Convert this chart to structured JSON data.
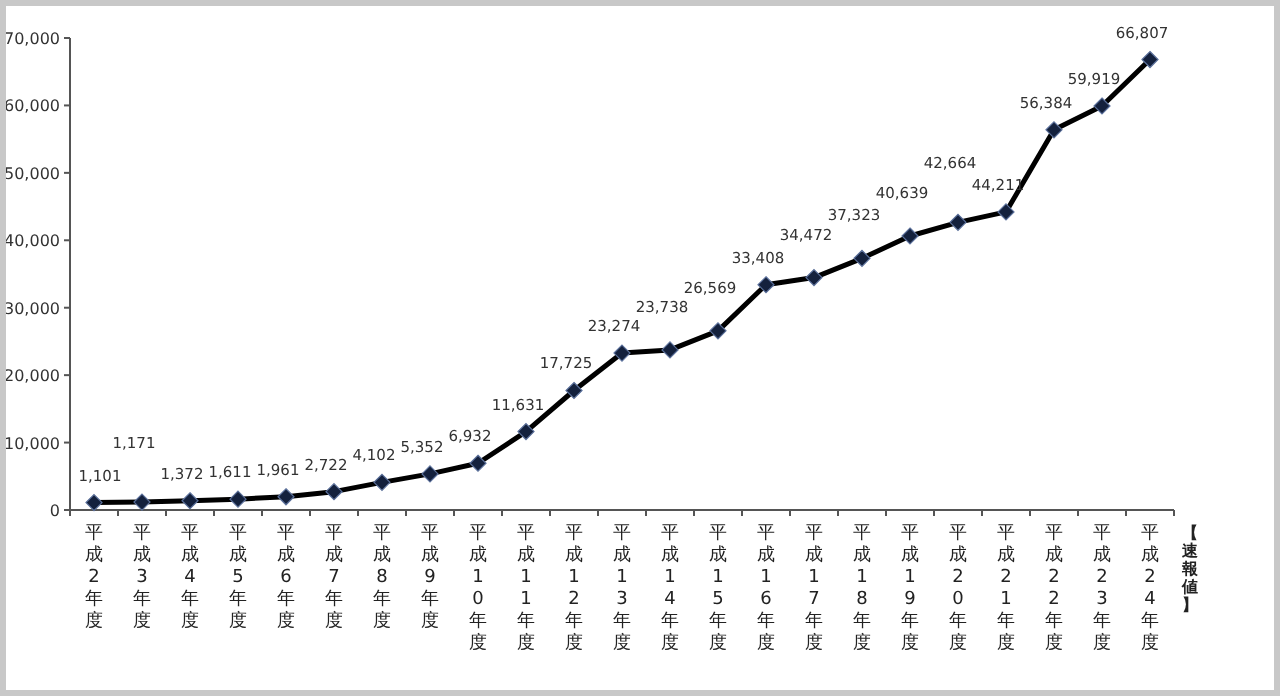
{
  "chart_data": {
    "type": "line",
    "categories": [
      "平成2年度",
      "平成3年度",
      "平成4年度",
      "平成5年度",
      "平成6年度",
      "平成7年度",
      "平成8年度",
      "平成9年度",
      "平成10年度",
      "平成11年度",
      "平成12年度",
      "平成13年度",
      "平成14年度",
      "平成15年度",
      "平成16年度",
      "平成17年度",
      "平成18年度",
      "平成19年度",
      "平成20年度",
      "平成21年度",
      "平成22年度",
      "平成23年度",
      "平成24年度"
    ],
    "series": [
      {
        "color": "#000000",
        "values": [
          1101,
          1171,
          1372,
          1611,
          1961,
          2722,
          4102,
          5352,
          6932,
          11631,
          17725,
          23274,
          23738,
          26569,
          33408,
          34472,
          37323,
          40639,
          42664,
          44211,
          56384,
          59919,
          66807
        ],
        "value_labels": [
          "1,101",
          "1,171",
          "1,372",
          "1,611",
          "1,961",
          "2,722",
          "4,102",
          "5,352",
          "6,932",
          "11,631",
          "17,725",
          "23,274",
          "23,738",
          "26,569",
          "33,408",
          "34,472",
          "37,323",
          "40,639",
          "42,664",
          "44,211",
          "56,384",
          "59,919",
          "66,807"
        ]
      }
    ],
    "ylim": [
      0,
      70000
    ],
    "yticks": [
      0,
      {
        "value": 10000,
        "label": "10,000"
      },
      {
        "value": 20000,
        "label": "20,000"
      },
      {
        "value": 30000,
        "label": "30,000"
      },
      {
        "value": 40000,
        "label": "40,000"
      },
      {
        "value": 50000,
        "label": "50,000"
      },
      {
        "value": 60000,
        "label": "60,000"
      },
      {
        "value": 70000,
        "label": "70,000"
      }
    ],
    "marker": "diamond",
    "line_style": "solid",
    "grid": false,
    "annotations": [
      "【速報値】"
    ]
  }
}
